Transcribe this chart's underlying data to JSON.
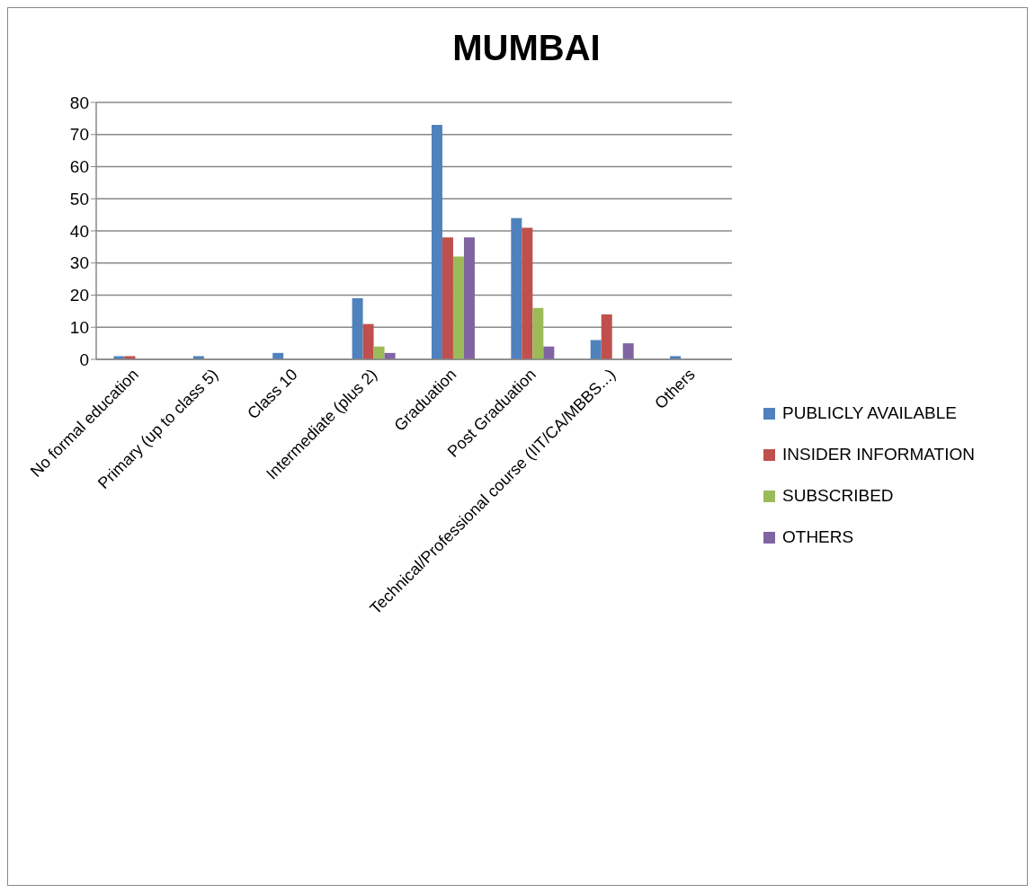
{
  "chart_data": {
    "type": "bar",
    "title": "MUMBAI",
    "categories": [
      "No formal education",
      "Primary (up to class 5)",
      "Class 10",
      "Intermediate (plus 2)",
      "Graduation",
      "Post Graduation",
      "Technical/Professional course (IIT/CA/MBBS...)",
      "Others"
    ],
    "series": [
      {
        "name": "PUBLICLY AVAILABLE",
        "color": "#4f81bd",
        "values": [
          1,
          1,
          2,
          19,
          73,
          44,
          6,
          1
        ]
      },
      {
        "name": "INSIDER INFORMATION",
        "color": "#c0504d",
        "values": [
          1,
          0,
          0,
          11,
          38,
          41,
          14,
          0
        ]
      },
      {
        "name": "SUBSCRIBED",
        "color": "#9bbb59",
        "values": [
          0,
          0,
          0,
          4,
          32,
          16,
          0,
          0
        ]
      },
      {
        "name": "OTHERS",
        "color": "#8064a2",
        "values": [
          0,
          0,
          0,
          2,
          38,
          4,
          5,
          0
        ]
      }
    ],
    "ylim": [
      0,
      80
    ],
    "yticks": [
      0,
      10,
      20,
      30,
      40,
      50,
      60,
      70,
      80
    ],
    "grid": "y",
    "legend": "right"
  }
}
